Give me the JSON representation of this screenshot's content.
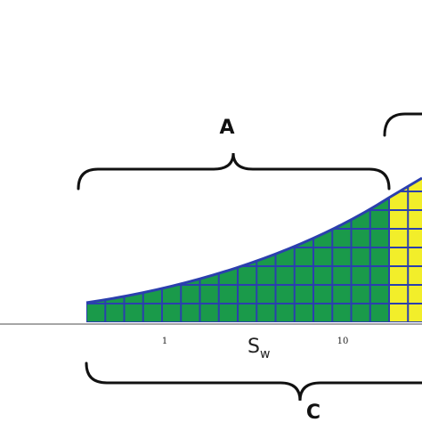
{
  "braces": {
    "top": "A",
    "bottom": "C"
  },
  "axis": {
    "label": "S",
    "label_sub": "w",
    "ticks": [
      1,
      10
    ]
  }
}
